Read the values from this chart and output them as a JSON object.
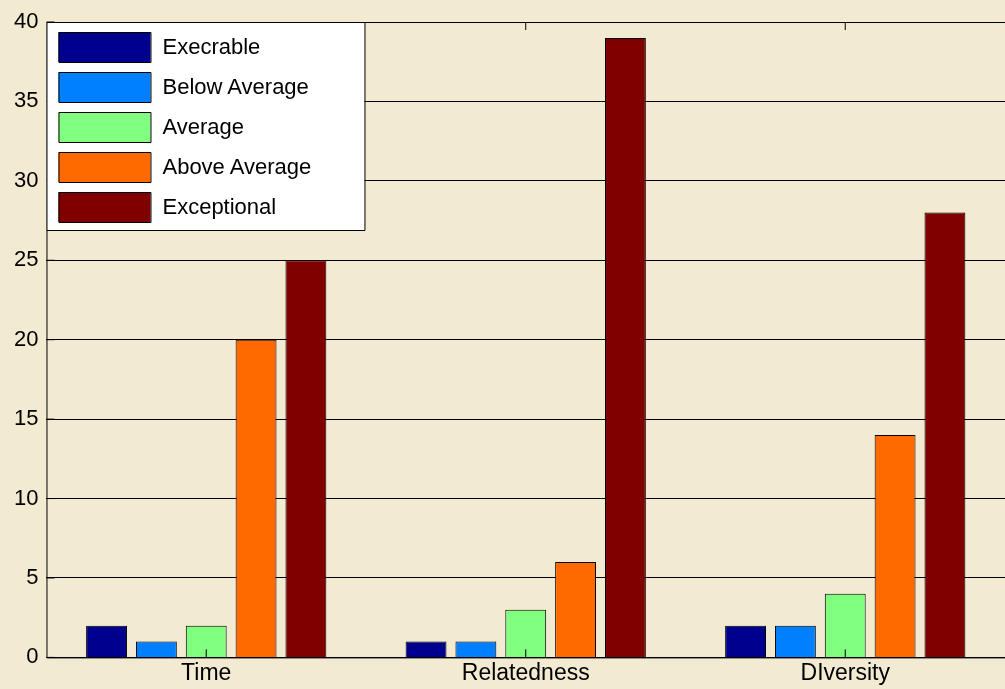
{
  "chart_data": {
    "type": "bar",
    "categories": [
      "Time",
      "Relatedness",
      "DIversity"
    ],
    "series": [
      {
        "name": "Execrable",
        "color": "#00008f",
        "values": [
          2,
          1,
          2
        ]
      },
      {
        "name": "Below Average",
        "color": "#0080ff",
        "values": [
          1,
          1,
          2
        ]
      },
      {
        "name": "Average",
        "color": "#80ff80",
        "values": [
          2,
          3,
          4
        ]
      },
      {
        "name": "Above Average",
        "color": "#ff6a00",
        "values": [
          20,
          6,
          14
        ]
      },
      {
        "name": "Exceptional",
        "color": "#800000",
        "values": [
          25,
          39,
          28
        ]
      }
    ],
    "ylim": [
      0,
      40
    ],
    "yticks": [
      0,
      5,
      10,
      15,
      20,
      25,
      30,
      35,
      40
    ],
    "grid": "y",
    "legend": "top left"
  }
}
